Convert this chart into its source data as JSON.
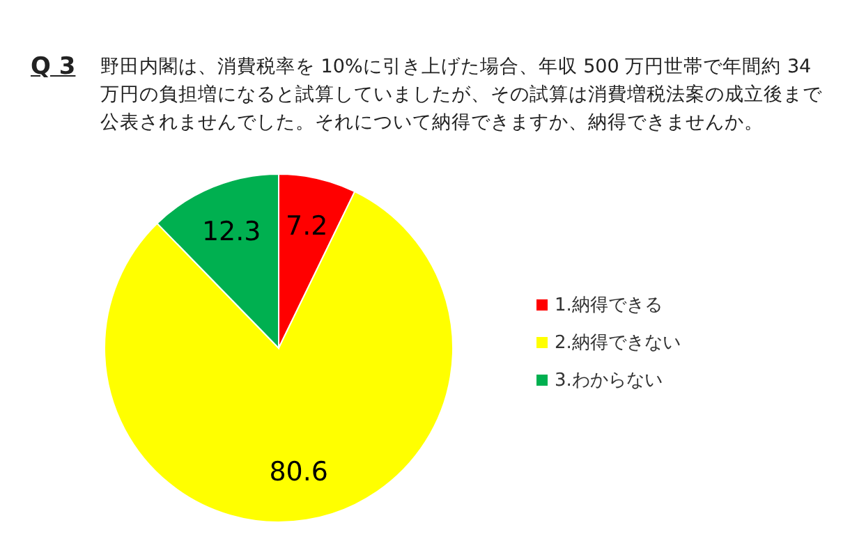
{
  "chart_data": {
    "type": "pie",
    "title": "Q 3",
    "subtitle": "野田内閣は、消費税率を 10%に引き上げた場合、年収 500 万円世帯で年間約 34 万円の負担増になると試算していましたが、その試算は消費増税法案の成立後まで公表されませんでした。それについて納得できますか、納得できませんか。",
    "categories": [
      "1.納得できる",
      "2.納得できない",
      "3.わからない"
    ],
    "values": [
      7.2,
      80.6,
      12.3
    ],
    "colors": [
      "#ff0000",
      "#ffff00",
      "#00b050"
    ],
    "data_labels": true,
    "legend": "right"
  }
}
